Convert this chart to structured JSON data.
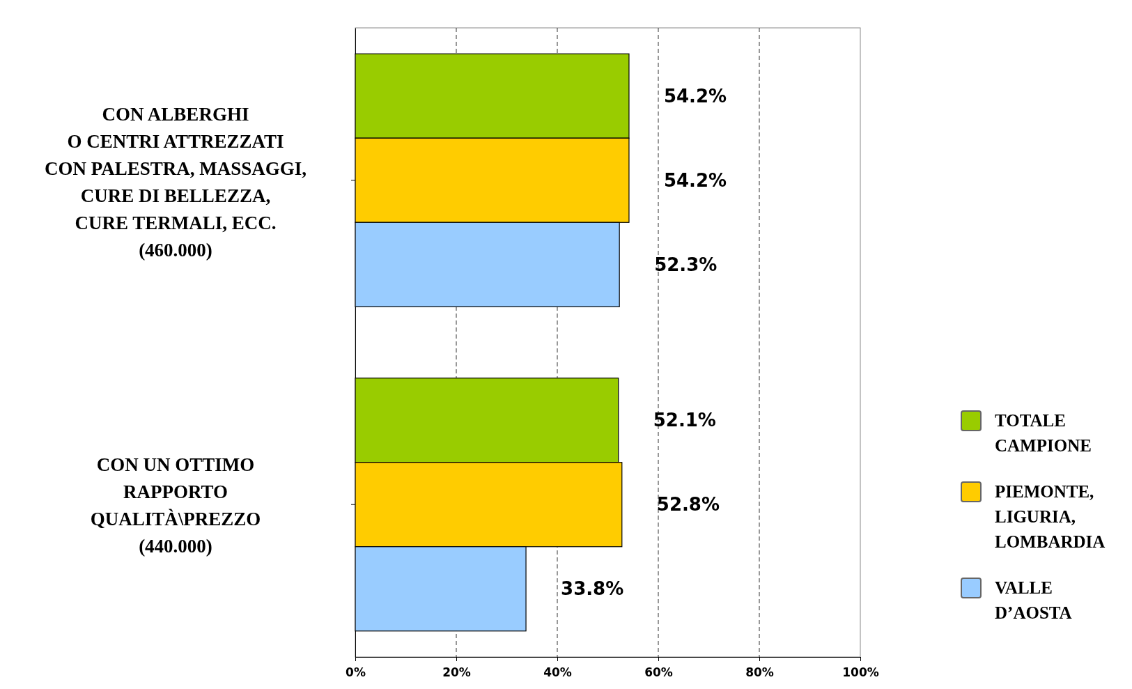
{
  "chart_data": {
    "type": "bar",
    "orientation": "horizontal",
    "categories": [
      "CON ALBERGHI\nO CENTRI ATTREZZATI\nCON PALESTRA, MASSAGGI,\nCURE DI BELLEZZA,\nCURE TERMALI, ECC.\n(460.000)",
      "CON UN OTTIMO\nRAPPORTO\nQUALITÀ\\PREZZO\n(440.000)"
    ],
    "series": [
      {
        "name": "TOTALE\nCAMPIONE",
        "color": "#99cc00",
        "values": [
          54.2,
          52.1
        ],
        "value_labels": [
          "54.2%",
          "52.1%"
        ]
      },
      {
        "name": "PIEMONTE,\nLIGURIA,\nLOMBARDIA",
        "color": "#ffcc00",
        "values": [
          54.2,
          52.8
        ],
        "value_labels": [
          "54.2%",
          "52.8%"
        ]
      },
      {
        "name": "VALLE\nD’AOSTA",
        "color": "#99ccff",
        "values": [
          52.3,
          33.8
        ],
        "value_labels": [
          "52.3%",
          "33.8%"
        ]
      }
    ],
    "xlim": [
      0,
      100
    ],
    "xticks": [
      {
        "value": 0,
        "label": "0%"
      },
      {
        "value": 20,
        "label": "20%"
      },
      {
        "value": 40,
        "label": "40%"
      },
      {
        "value": 60,
        "label": "60%"
      },
      {
        "value": 80,
        "label": "80%"
      },
      {
        "value": 100,
        "label": "100%"
      }
    ],
    "grid": "x",
    "legend": "right"
  }
}
